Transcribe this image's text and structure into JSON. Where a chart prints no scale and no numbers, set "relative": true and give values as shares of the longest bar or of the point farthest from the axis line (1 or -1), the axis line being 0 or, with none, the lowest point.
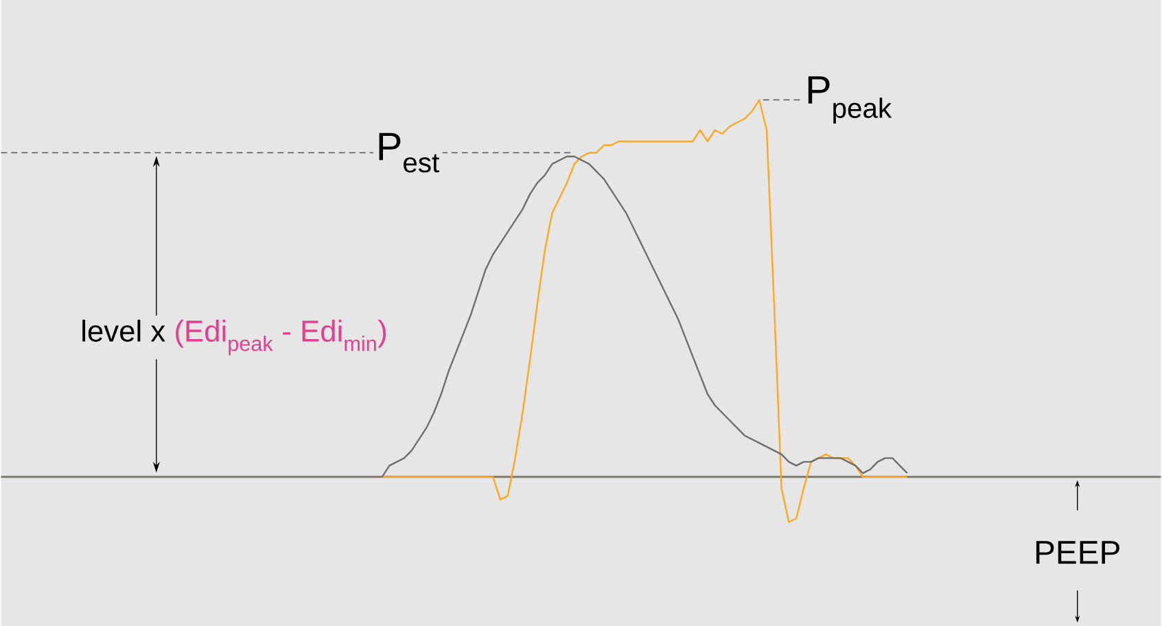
{
  "chart_data": {
    "type": "line",
    "relative": true,
    "categories": [
      null,
      null,
      null,
      null,
      null,
      null,
      null,
      null,
      null,
      null,
      null,
      null,
      null,
      null,
      null,
      null,
      null,
      null,
      null,
      null,
      null,
      null,
      null,
      null,
      null,
      null,
      null,
      null,
      null,
      null,
      null,
      null,
      null,
      null,
      null,
      null,
      null,
      null,
      null,
      null,
      null,
      null,
      null,
      null,
      null,
      null,
      null,
      null,
      null,
      null,
      null,
      null,
      null,
      null,
      null,
      null,
      null,
      null,
      null,
      null,
      null,
      null,
      null,
      null,
      null,
      null,
      null,
      null,
      null,
      null,
      null,
      null,
      null,
      null,
      null,
      null,
      null,
      null,
      null,
      null,
      null,
      null,
      null,
      null,
      null,
      null,
      null,
      null,
      null,
      null,
      null,
      null,
      null,
      null,
      null,
      null,
      null,
      null,
      null,
      null,
      null,
      null,
      null,
      null,
      null,
      null,
      null,
      null,
      null,
      null,
      null,
      null,
      null,
      null,
      null,
      null,
      null,
      null,
      null,
      null,
      null,
      null,
      null,
      null,
      null,
      null,
      null,
      null,
      null,
      null,
      null,
      null,
      null,
      null,
      null,
      null,
      null,
      null,
      null,
      null,
      null,
      null,
      null,
      null,
      null,
      null,
      null,
      null,
      null,
      null,
      null,
      null,
      null,
      null,
      null,
      null
    ],
    "series": [
      {
        "color": "#ffa81e",
        "values": [
          null,
          null,
          null,
          null,
          null,
          null,
          null,
          null,
          null,
          null,
          null,
          null,
          null,
          null,
          null,
          null,
          null,
          null,
          null,
          null,
          null,
          null,
          null,
          null,
          null,
          null,
          null,
          null,
          null,
          null,
          null,
          null,
          null,
          null,
          null,
          null,
          null,
          null,
          null,
          null,
          null,
          null,
          null,
          null,
          null,
          null,
          null,
          null,
          null,
          null,
          0,
          0,
          0,
          0,
          0,
          0,
          0,
          0,
          0,
          0,
          0,
          0,
          0,
          0,
          0,
          0,
          -0.06,
          -0.05,
          0.05,
          0.17,
          0.31,
          0.46,
          0.6,
          0.7,
          0.74,
          0.78,
          0.83,
          0.85,
          0.86,
          0.86,
          0.88,
          0.88,
          0.89,
          0.89,
          0.89,
          0.89,
          0.89,
          0.89,
          0.89,
          0.89,
          0.89,
          0.89,
          0.89,
          0.92,
          0.89,
          0.92,
          0.91,
          0.93,
          0.94,
          0.95,
          0.97,
          1,
          0.92,
          0.46,
          -0.03,
          -0.12,
          -0.11,
          -0.03,
          0.04,
          0.05,
          0.06,
          0.05,
          0.05,
          0.05,
          0.03,
          0,
          0,
          0,
          0,
          0,
          0,
          0,
          null,
          null,
          null,
          null,
          null,
          null,
          null,
          null,
          null,
          null,
          null,
          null,
          null,
          null,
          null,
          null,
          null,
          null,
          null,
          null,
          null,
          null,
          null,
          null,
          null,
          null,
          null,
          null,
          null,
          null,
          null,
          null,
          null,
          null
        ]
      },
      {
        "color": "#6e6e6e",
        "values": [
          null,
          null,
          null,
          null,
          null,
          null,
          null,
          null,
          null,
          null,
          null,
          null,
          null,
          null,
          null,
          null,
          null,
          null,
          null,
          null,
          null,
          null,
          null,
          null,
          null,
          null,
          null,
          null,
          null,
          null,
          null,
          null,
          null,
          null,
          null,
          null,
          null,
          null,
          null,
          null,
          null,
          null,
          null,
          null,
          null,
          null,
          null,
          null,
          null,
          null,
          0,
          0.03,
          0.04,
          0.05,
          0.07,
          0.1,
          0.13,
          0.17,
          0.22,
          0.28,
          0.33,
          0.38,
          0.43,
          0.49,
          0.55,
          0.59,
          0.62,
          0.65,
          0.68,
          0.71,
          0.75,
          0.78,
          0.8,
          0.83,
          0.84,
          0.85,
          0.85,
          0.84,
          0.83,
          0.81,
          0.79,
          0.76,
          0.73,
          0.7,
          0.66,
          0.62,
          0.58,
          0.54,
          0.5,
          0.46,
          0.42,
          0.37,
          0.32,
          0.27,
          0.22,
          0.19,
          0.17,
          0.15,
          0.13,
          0.11,
          0.1,
          0.09,
          0.08,
          0.07,
          0.06,
          0.04,
          0.03,
          0.04,
          0.04,
          0.05,
          0.05,
          0.05,
          0.05,
          0.04,
          0.03,
          0.01,
          0.02,
          0.04,
          0.05,
          0.05,
          0.03,
          0.01,
          null,
          null,
          null,
          null,
          null,
          null,
          null,
          null,
          null,
          null,
          null,
          null,
          null,
          null,
          null,
          null,
          null,
          null,
          null,
          null,
          null,
          null,
          null,
          null,
          null,
          null,
          null,
          null,
          null,
          null,
          null,
          null,
          null,
          null
        ]
      }
    ],
    "ref_lines": [
      {
        "axis": "y",
        "value": 0.86,
        "label": "P$_{est}$",
        "color": "#555555",
        "line_style": "dashed"
      }
    ],
    "annotations": [
      "level x",
      "(Edi$_{peak}$ - Edi$_{min}$)",
      "P$_{peak}$",
      "PEEP"
    ]
  }
}
